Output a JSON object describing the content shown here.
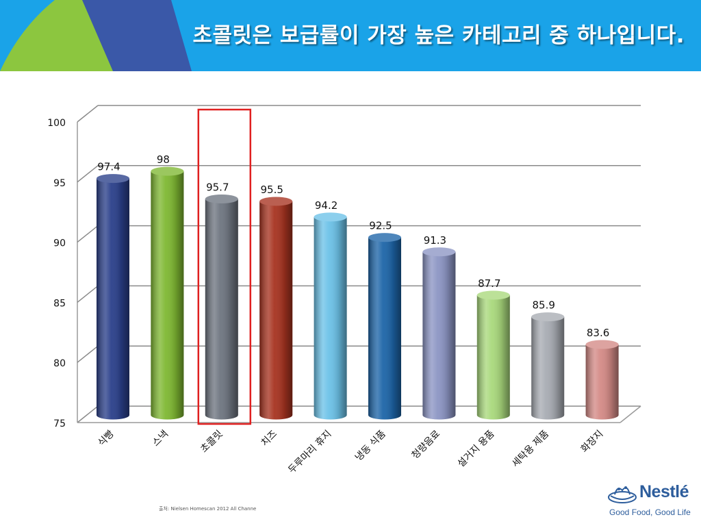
{
  "header": {
    "title": "초콜릿은 보급률이 가장 높은 카테고리 중 하나입니다."
  },
  "chart_data": {
    "type": "bar",
    "style": "3d-cylinder",
    "categories": [
      "식빵",
      "스낵",
      "초콜릿",
      "치즈",
      "두루마리 휴지",
      "냉동 식품",
      "청량음료",
      "설거지 용품",
      "세탁용 제품",
      "화장지"
    ],
    "values": [
      97.4,
      98,
      95.7,
      95.5,
      94.2,
      92.5,
      91.3,
      87.7,
      85.9,
      83.6
    ],
    "value_labels": [
      "97.4",
      "98",
      "95.7",
      "95.5",
      "94.2",
      "92.5",
      "91.3",
      "87.7",
      "85.9",
      "83.6"
    ],
    "colors": [
      "#2a3f8a",
      "#7fb832",
      "#6e7580",
      "#a73320",
      "#6cc2e8",
      "#1d65a8",
      "#8c95c4",
      "#a9d97c",
      "#a8acb3",
      "#d48a86"
    ],
    "ylim": [
      75,
      100
    ],
    "yticks": [
      75,
      80,
      85,
      90,
      95,
      100
    ],
    "grid": true,
    "legend": "none",
    "highlight_category": "초콜릿",
    "highlight_color": "#e02020"
  },
  "footer": {
    "source": "출처: Nielsen Homescan 2012 All Channe"
  },
  "logo": {
    "brand": "Nestlé",
    "tagline": "Good Food, Good Life"
  }
}
